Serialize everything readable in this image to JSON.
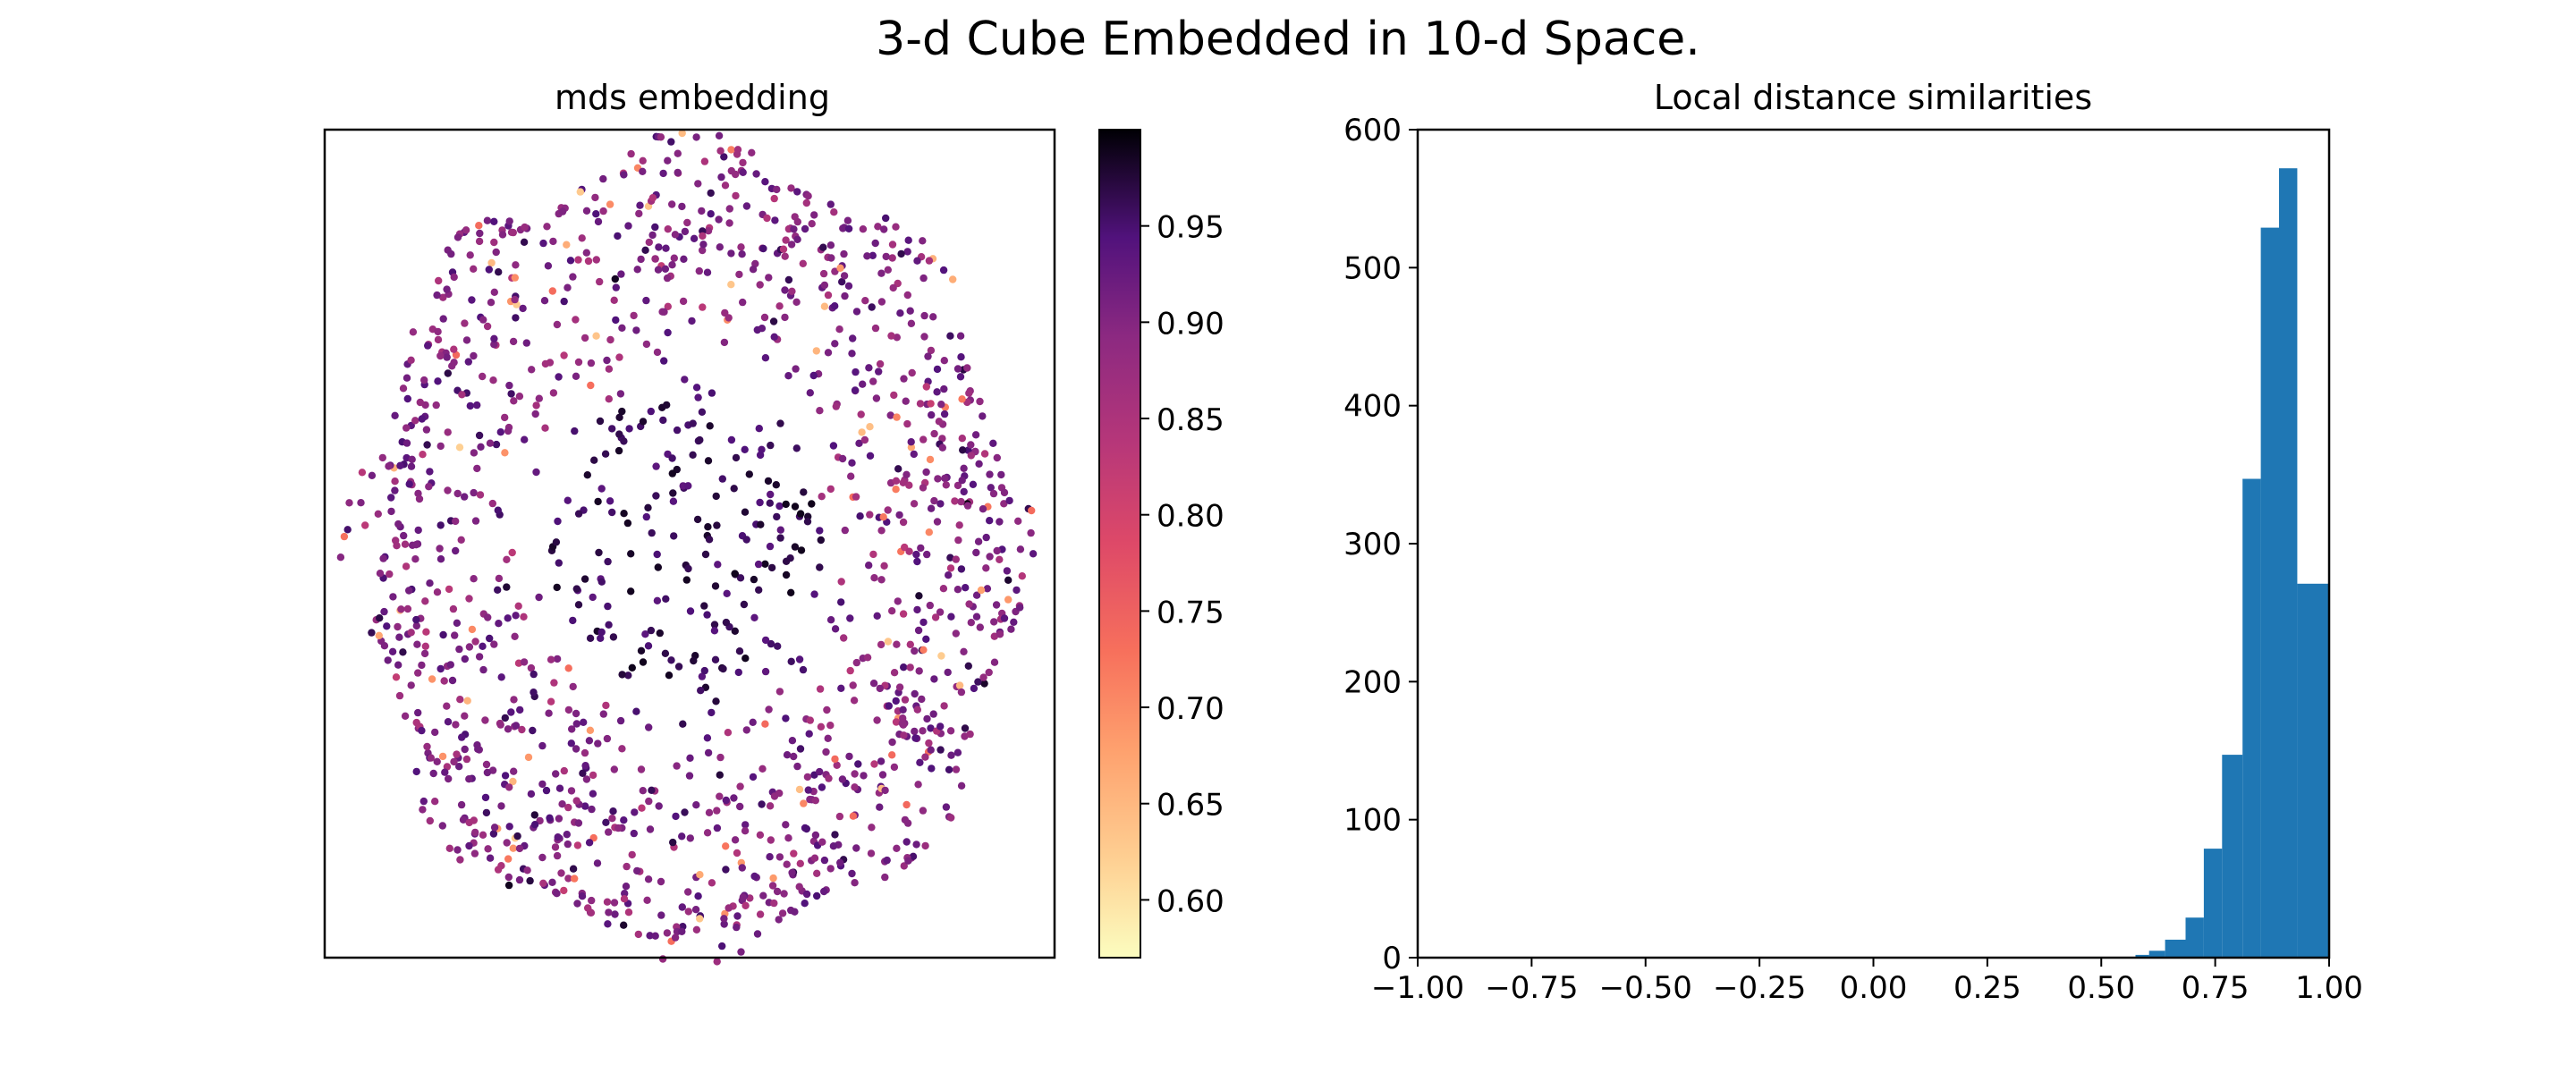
{
  "figure": {
    "title": "3-d Cube Embedded in 10-d Space."
  },
  "chart_data": [
    {
      "type": "scatter",
      "title": "mds embedding",
      "xlabel": "",
      "ylabel": "",
      "axis_ticks": "none",
      "cmap": "magma_r",
      "description": "About 1500 points form a thick ring (rounded octagon) with a sparsely filled center; points colored by local distance similarity, center points mostly dark (~0.95+), a few light-orange (~0.6-0.7) points scattered around the ring.",
      "point_count": 1500,
      "ring_center": [
        0,
        0
      ],
      "ring_inner_radius": 0.42,
      "ring_outer_radius": 1.0,
      "colorbar": {
        "range": [
          0.57,
          1.0
        ],
        "ticks": [
          0.6,
          0.65,
          0.7,
          0.75,
          0.8,
          0.85,
          0.9,
          0.95
        ],
        "tick_labels": [
          "0.60",
          "0.65",
          "0.70",
          "0.75",
          "0.80",
          "0.85",
          "0.90",
          "0.95"
        ]
      }
    },
    {
      "type": "bar",
      "subtype": "histogram",
      "title": "Local distance similarities",
      "xlabel": "",
      "ylabel": "",
      "xlim": [
        -1.0,
        1.0
      ],
      "ylim": [
        0,
        600
      ],
      "bar_color": "#1f77b4",
      "x_ticks": [
        "−1.00",
        "−0.75",
        "−0.50",
        "−0.25",
        "0.00",
        "0.25",
        "0.50",
        "0.75",
        "1.00"
      ],
      "x_tick_values": [
        -1.0,
        -0.75,
        -0.5,
        -0.25,
        0.0,
        0.25,
        0.5,
        0.75,
        1.0
      ],
      "y_ticks": [
        "0",
        "100",
        "200",
        "300",
        "400",
        "500",
        "600"
      ],
      "y_tick_values": [
        0,
        100,
        200,
        300,
        400,
        500,
        600
      ],
      "bins": [
        {
          "x0": 0.575,
          "x1": 0.605,
          "value": 2
        },
        {
          "x0": 0.605,
          "x1": 0.64,
          "value": 5
        },
        {
          "x0": 0.64,
          "x1": 0.685,
          "value": 13
        },
        {
          "x0": 0.685,
          "x1": 0.725,
          "value": 29
        },
        {
          "x0": 0.725,
          "x1": 0.765,
          "value": 79
        },
        {
          "x0": 0.765,
          "x1": 0.81,
          "value": 147
        },
        {
          "x0": 0.81,
          "x1": 0.85,
          "value": 347
        },
        {
          "x0": 0.85,
          "x1": 0.89,
          "value": 529
        },
        {
          "x0": 0.89,
          "x1": 0.93,
          "value": 572
        },
        {
          "x0": 0.93,
          "x1": 1.0,
          "value": 271
        }
      ]
    }
  ]
}
